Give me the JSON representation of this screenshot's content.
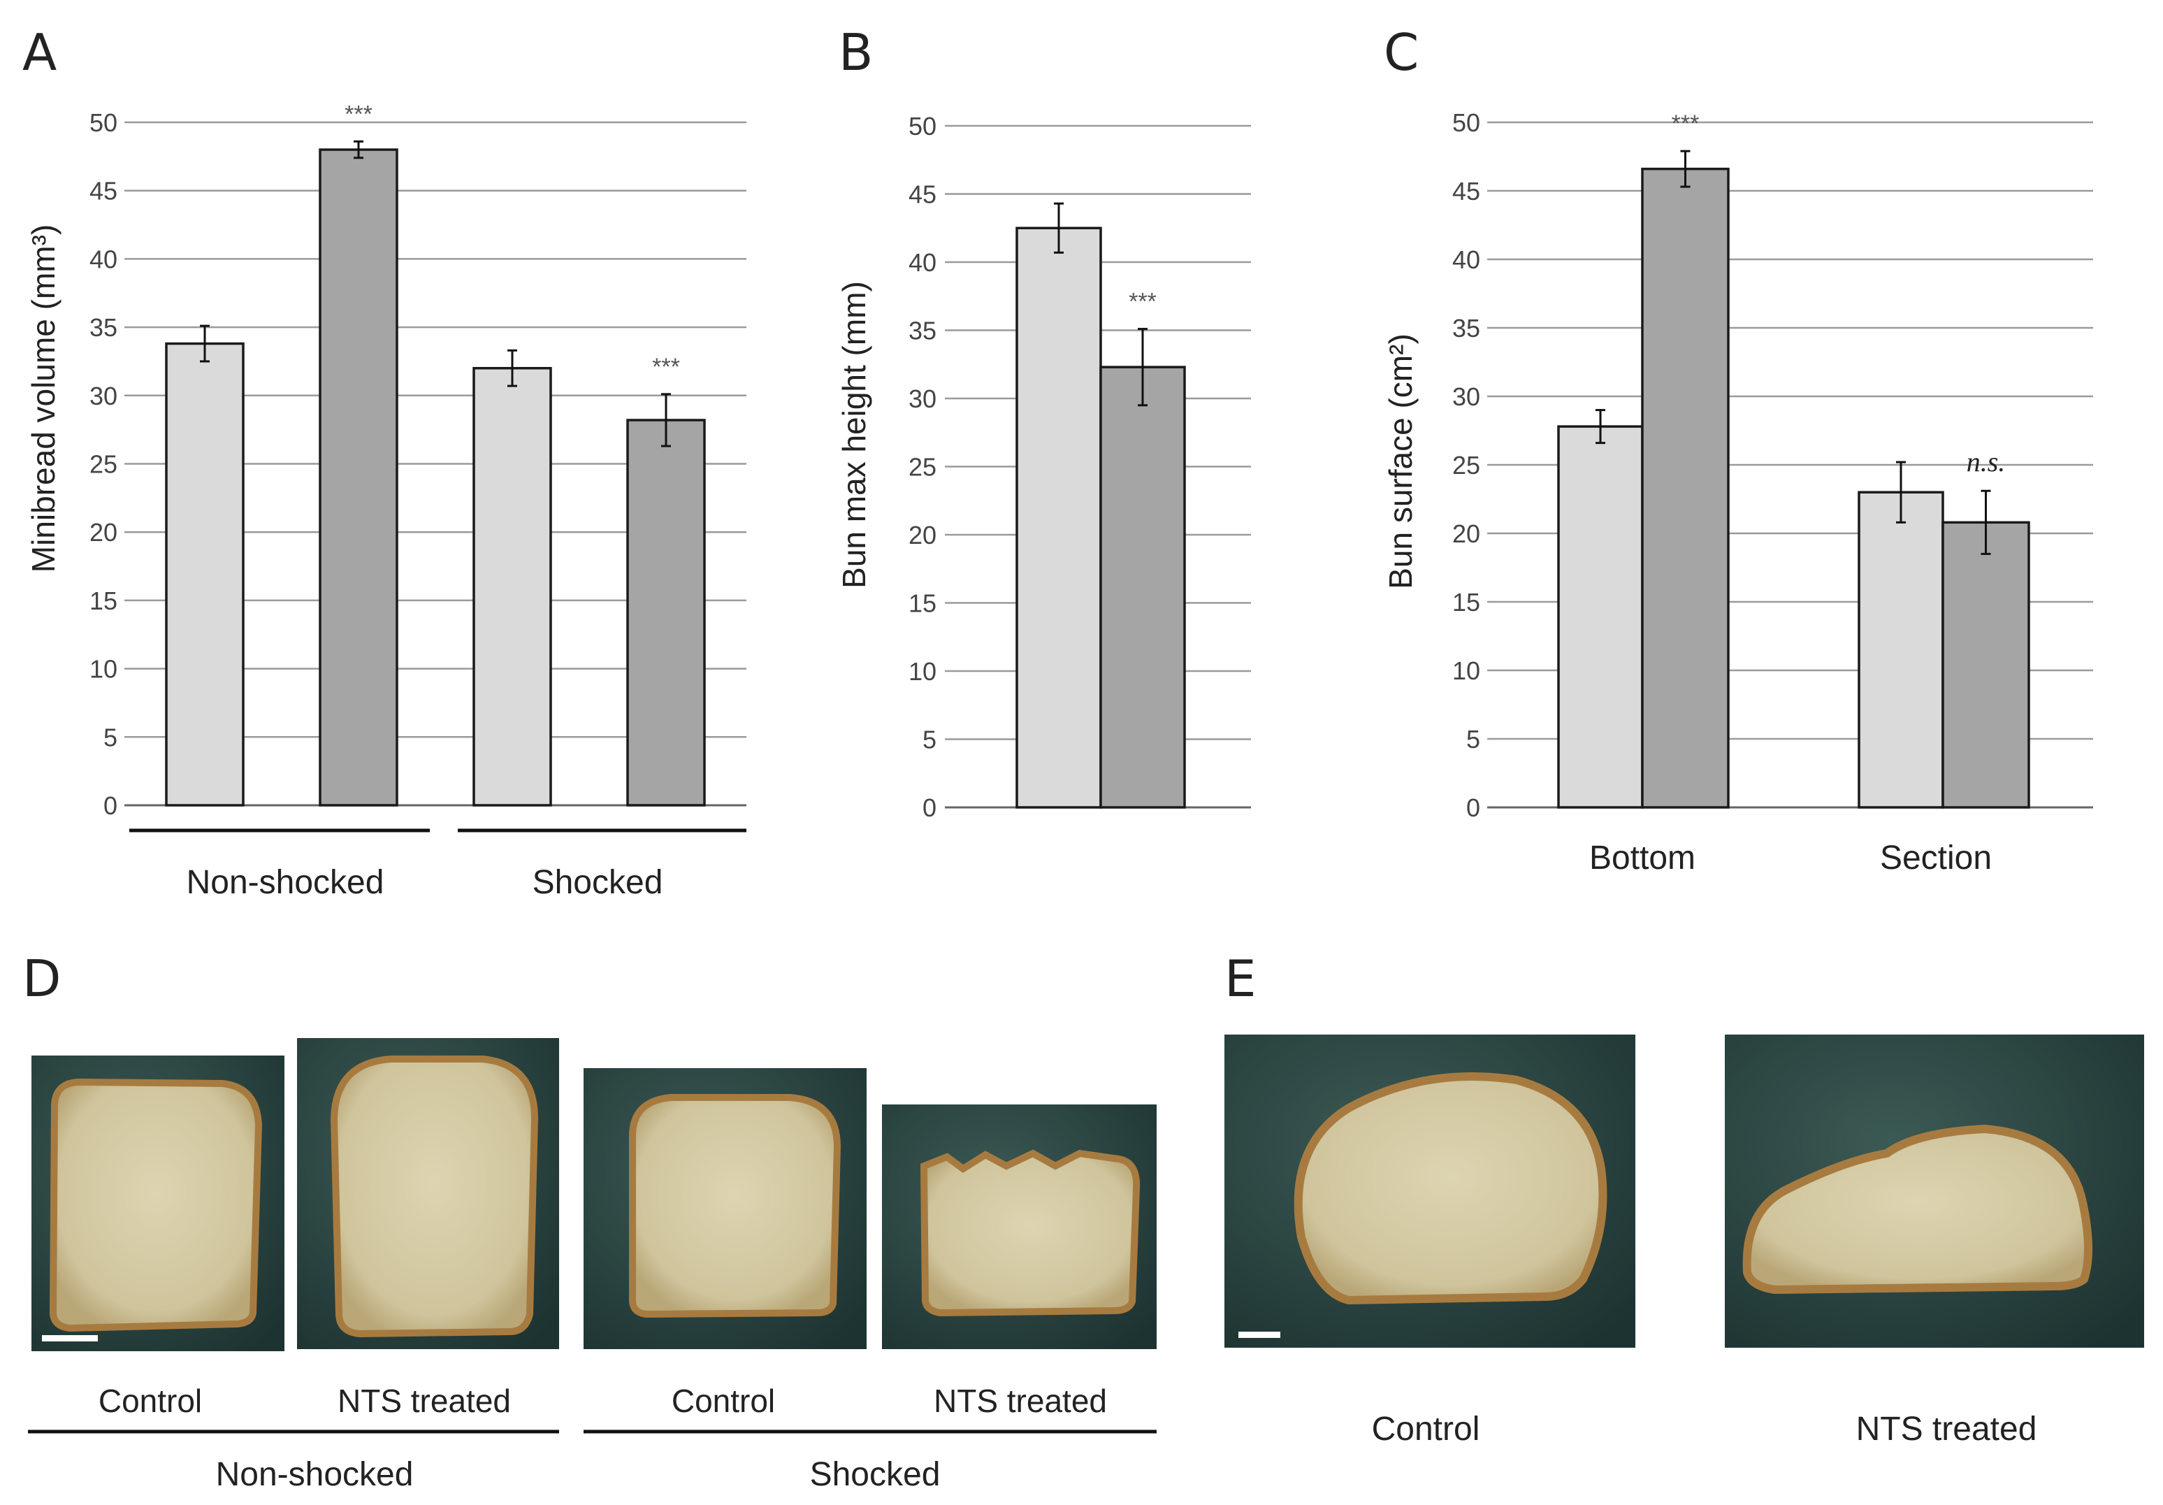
{
  "panels": {
    "A": "A",
    "B": "B",
    "C": "C",
    "D": "D",
    "E": "E"
  },
  "chart_data": [
    {
      "panel": "A",
      "type": "bar",
      "ylabel": "Minibread volume (mm³)",
      "ylim": [
        0,
        50
      ],
      "yticks": [
        "0",
        "5",
        "10",
        "15",
        "20",
        "25",
        "30",
        "35",
        "40",
        "45",
        "50"
      ],
      "grid": true,
      "bars": [
        {
          "value": 33.8,
          "error": 1.3,
          "color": "#dadada",
          "significance": ""
        },
        {
          "value": 48.0,
          "error": 0.6,
          "color": "#a5a5a5",
          "significance": "***"
        },
        {
          "value": 32.0,
          "error": 1.3,
          "color": "#dadada",
          "significance": ""
        },
        {
          "value": 28.2,
          "error": 1.9,
          "color": "#a5a5a5",
          "significance": "***"
        }
      ],
      "groups": [
        {
          "label": "Non-shocked",
          "bars": [
            0,
            1
          ]
        },
        {
          "label": "Shocked",
          "bars": [
            2,
            3
          ]
        }
      ]
    },
    {
      "panel": "B",
      "type": "bar",
      "ylabel": "Bun max height (mm)",
      "ylim": [
        0,
        50
      ],
      "yticks": [
        "0",
        "5",
        "10",
        "15",
        "20",
        "25",
        "30",
        "35",
        "40",
        "45",
        "50"
      ],
      "grid": true,
      "bars": [
        {
          "value": 42.5,
          "error": 1.8,
          "color": "#dadada",
          "significance": ""
        },
        {
          "value": 32.3,
          "error": 2.8,
          "color": "#a5a5a5",
          "significance": "***"
        }
      ]
    },
    {
      "panel": "C",
      "type": "bar",
      "ylabel": "Bun surface (cm²)",
      "ylim": [
        0,
        50
      ],
      "yticks": [
        "0",
        "5",
        "10",
        "15",
        "20",
        "25",
        "30",
        "35",
        "40",
        "45",
        "50"
      ],
      "grid": true,
      "categories": [
        "Bottom",
        "Section"
      ],
      "bars": [
        {
          "value": 27.8,
          "error": 1.2,
          "color": "#dadada",
          "significance": ""
        },
        {
          "value": 46.6,
          "error": 1.3,
          "color": "#a5a5a5",
          "significance": "***"
        },
        {
          "value": 23.0,
          "error": 2.2,
          "color": "#dadada",
          "significance": ""
        },
        {
          "value": 20.8,
          "error": 2.3,
          "color": "#a5a5a5",
          "significance": "n.s."
        }
      ]
    }
  ],
  "panel_d": {
    "captions": [
      "Control",
      "NTS treated",
      "Control",
      "NTS treated"
    ],
    "groups": [
      "Non-shocked",
      "Shocked"
    ]
  },
  "panel_e": {
    "captions": [
      "Control",
      "NTS treated"
    ]
  },
  "colors": {
    "control_bar": "#dadada",
    "treated_bar": "#a5a5a5",
    "photo_background": "#26403d",
    "crumb": "#d3c9a3",
    "crust": "#a77b40"
  }
}
